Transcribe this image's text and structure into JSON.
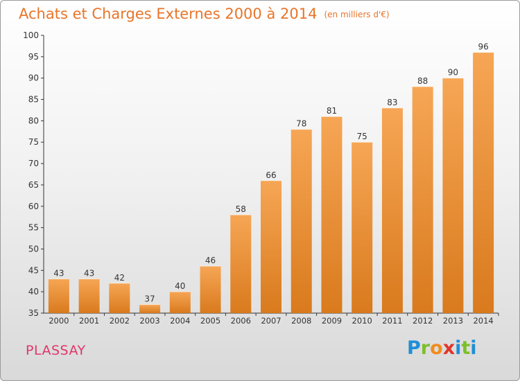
{
  "title": "Achats et Charges Externes 2000 à 2014",
  "subtitle": "(en milliers d'€)",
  "location": "PLASSAY",
  "brand": {
    "letters": [
      "P",
      "r",
      "o",
      "x",
      "i",
      "t",
      "i"
    ],
    "colors": [
      "#1f8fd6",
      "#7cbf2c",
      "#f08c1d",
      "#e2342b",
      "#1f8fd6",
      "#7cbf2c",
      "#1f8fd6"
    ]
  },
  "colors": {
    "bar_top": "#f6a655",
    "bar_bottom": "#d97a1d",
    "title": "#e8752a",
    "location": "#e0366b"
  },
  "chart_data": {
    "type": "bar",
    "title": "Achats et Charges Externes 2000 à 2014",
    "subtitle": "(en milliers d'€)",
    "categories": [
      "2000",
      "2001",
      "2002",
      "2003",
      "2004",
      "2005",
      "2006",
      "2007",
      "2008",
      "2009",
      "2010",
      "2011",
      "2012",
      "2013",
      "2014"
    ],
    "values": [
      43,
      43,
      42,
      37,
      40,
      46,
      58,
      66,
      78,
      81,
      75,
      83,
      88,
      90,
      96
    ],
    "ylim": [
      35,
      100
    ],
    "yticks": [
      35,
      40,
      45,
      50,
      55,
      60,
      65,
      70,
      75,
      80,
      85,
      90,
      95,
      100
    ],
    "grid": false,
    "data_labels": true
  }
}
